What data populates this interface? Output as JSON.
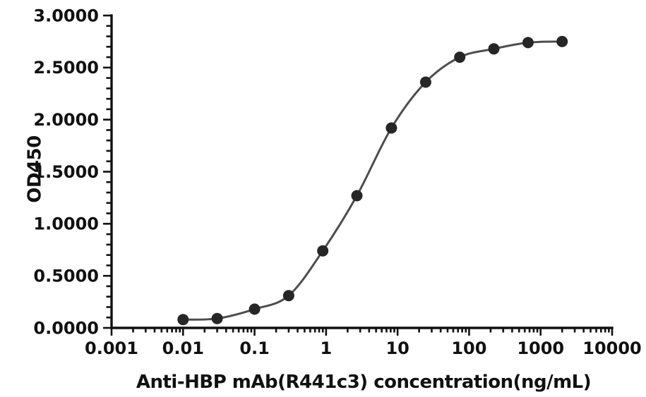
{
  "figure": {
    "background": "#ffffff",
    "xlabel": "Anti-HBP mAb(R441c3) concentration(ng/mL)",
    "ylabel": "OD450"
  },
  "style": {
    "axis_color": "#111111",
    "text_color": "#111111",
    "line_color": "#4d4d4d",
    "marker_color": "#262626"
  },
  "chart_data": {
    "type": "line",
    "title": "",
    "xlabel": "Anti-HBP mAb(R441c3) concentration(ng/mL)",
    "ylabel": "OD450",
    "x_scale": "log",
    "xlim": [
      0.001,
      10000
    ],
    "ylim": [
      0,
      3
    ],
    "grid": false,
    "legend_position": "none",
    "x_major_ticks": [
      0.001,
      0.01,
      0.1,
      1,
      10,
      100,
      1000,
      10000
    ],
    "x_tick_labels": [
      "0.001",
      "0.01",
      "0.1",
      "1",
      "10",
      "100",
      "1000",
      "10000"
    ],
    "x_minor_ticks": "log-multiples-2-9",
    "y_major_ticks": [
      0,
      0.5,
      1,
      1.5,
      2,
      2.5,
      3
    ],
    "y_tick_labels": [
      "0.0000",
      "0.5000",
      "1.0000",
      "1.5000",
      "2.0000",
      "2.5000",
      "3.0000"
    ],
    "y_minor_step": 0.1,
    "series": [
      {
        "marker": "circle",
        "smooth": true,
        "x": [
          0.01,
          0.03,
          0.1,
          0.3,
          0.9,
          2.7,
          8.2,
          24.7,
          74.1,
          222.2,
          666.7,
          2000
        ],
        "y": [
          0.08,
          0.09,
          0.18,
          0.31,
          0.74,
          1.27,
          1.92,
          2.36,
          2.6,
          2.68,
          2.74,
          2.75
        ]
      }
    ]
  }
}
